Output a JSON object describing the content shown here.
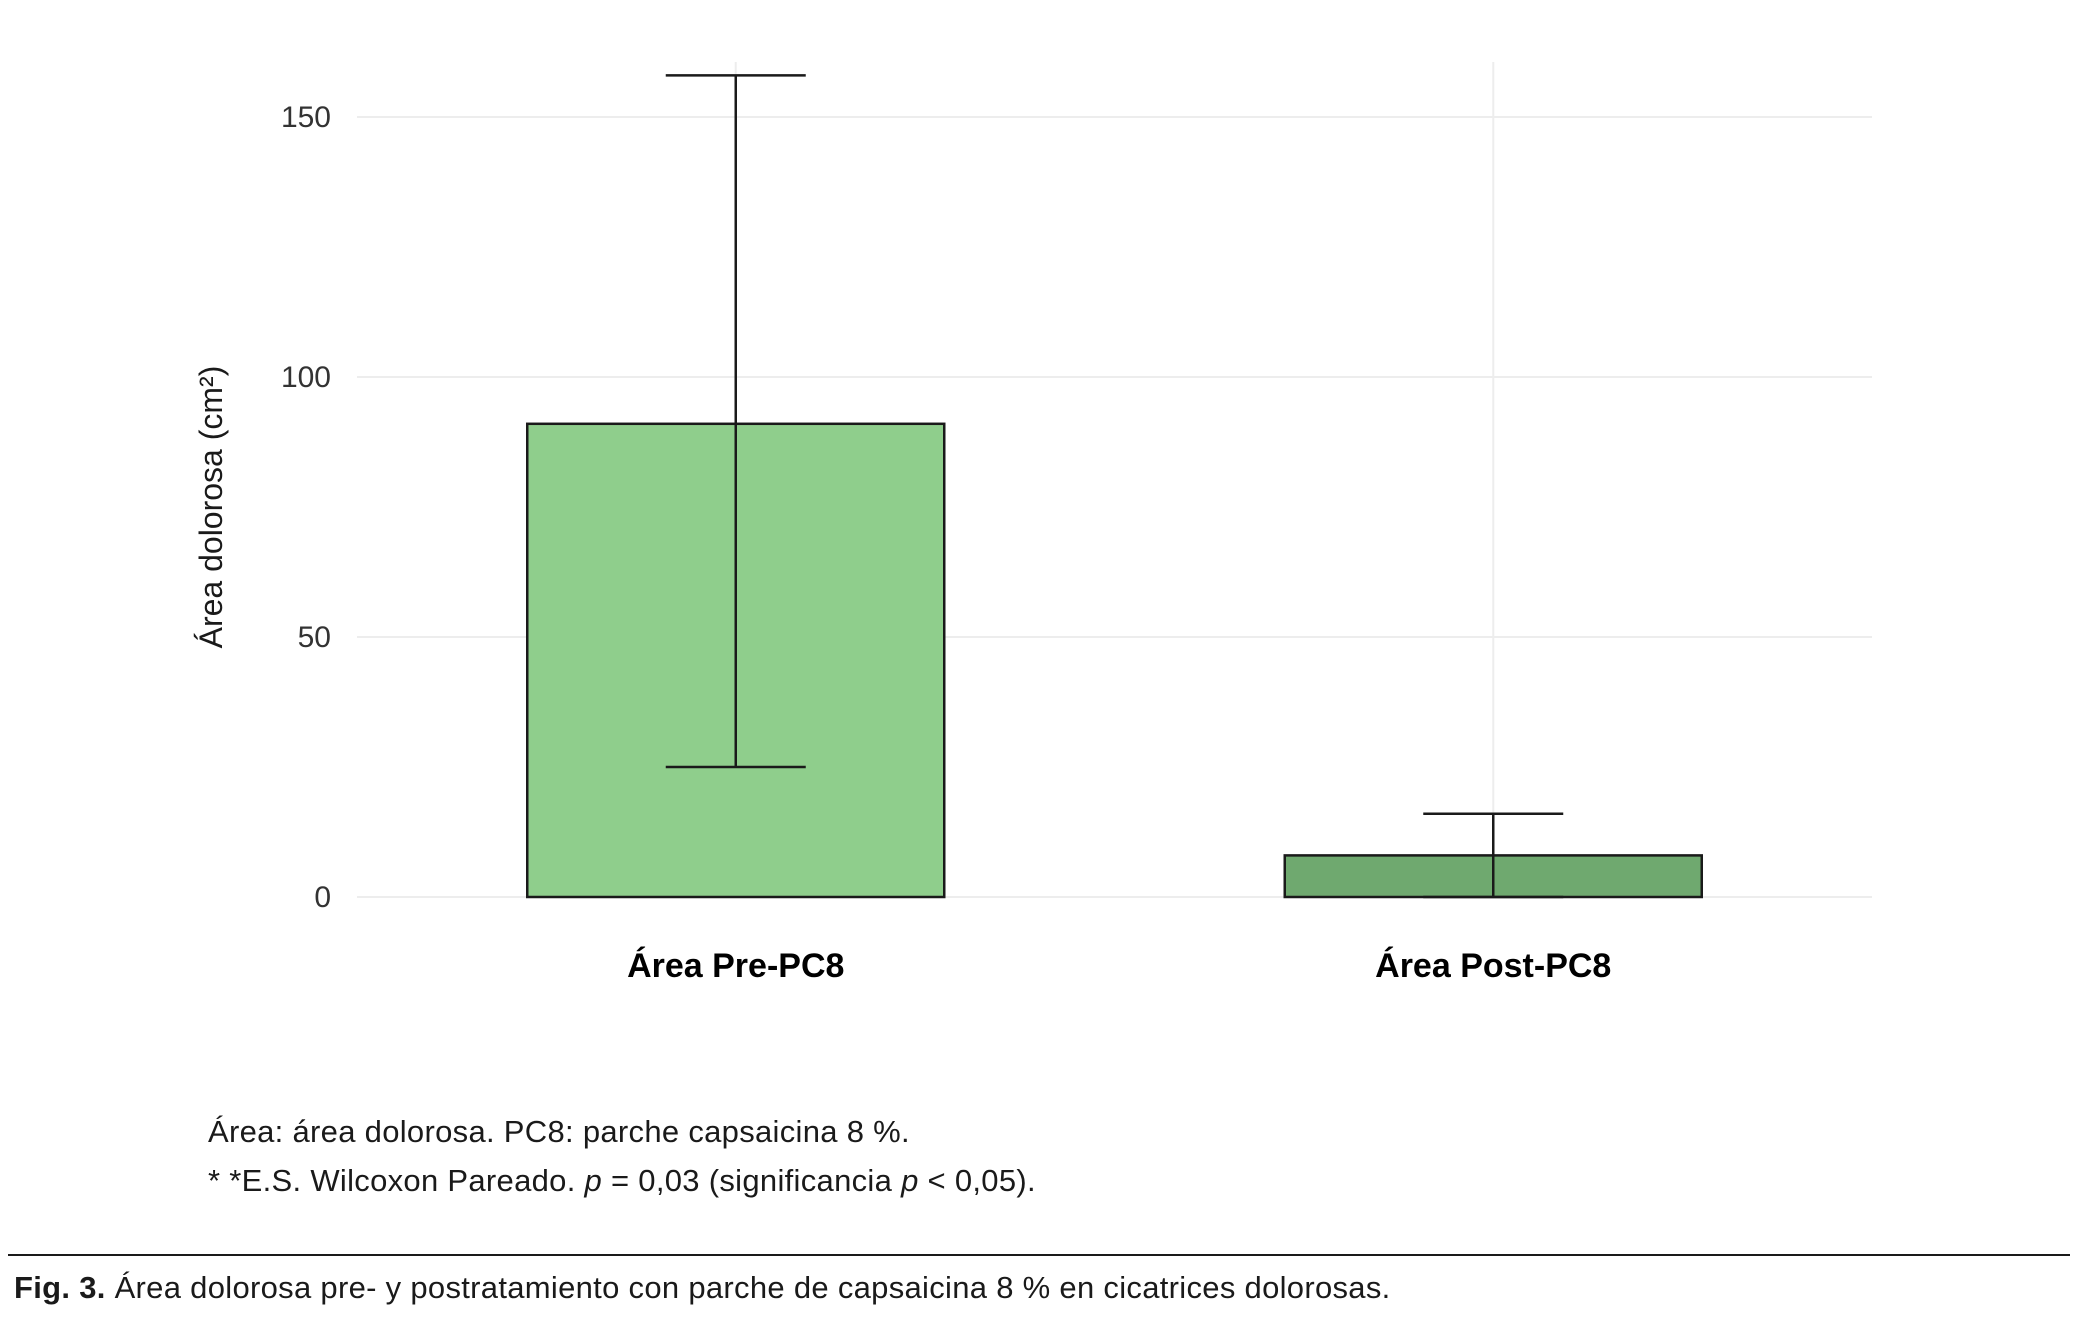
{
  "chart_data": {
    "type": "bar",
    "title": "",
    "xlabel": "",
    "ylabel": "Área dolorosa (cm²)",
    "categories": [
      "Área Pre-PC8",
      "Área Post-PC8"
    ],
    "values": [
      91,
      8
    ],
    "error_bars": [
      {
        "low": 25,
        "high": 158
      },
      {
        "low": 0,
        "high": 16
      }
    ],
    "yticks": [
      0,
      50,
      100,
      150
    ],
    "ylim": [
      0,
      165
    ],
    "grid": true,
    "legend": "none",
    "bar_colors": [
      "#8fce8c",
      "#6fa96f"
    ],
    "bar_stroke": "#1a1a1a",
    "error_color": "#1a1a1a",
    "gridline_color": "#ededed",
    "tick_label_color": "#333333",
    "axis_label_color": "#1a1a1a",
    "category_label_color": "#000000"
  },
  "footnotes": {
    "line1": "Área: área dolorosa. PC8: parche capsaicina 8 %.",
    "line2": {
      "a": "* *E.S. Wilcoxon Pareado. ",
      "p1": "p",
      "b": " = 0,03 (significancia ",
      "p2": "p",
      "c": " < 0,05)."
    }
  },
  "caption": {
    "label": "Fig. 3.",
    "text": " Área dolorosa pre- y postratamiento con parche de capsaicina 8 % en cicatrices dolorosas."
  }
}
